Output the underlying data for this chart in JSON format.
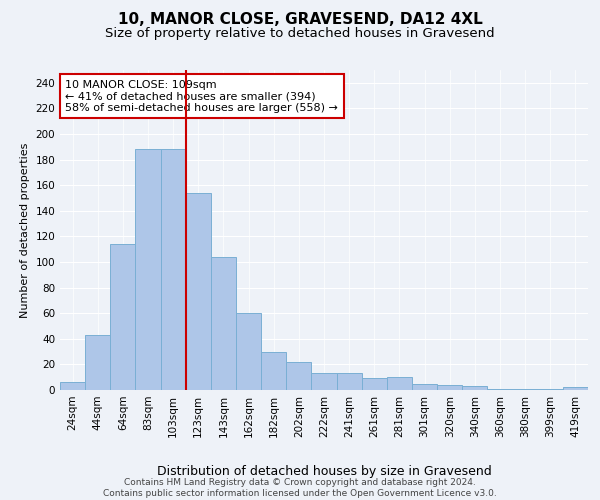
{
  "title": "10, MANOR CLOSE, GRAVESEND, DA12 4XL",
  "subtitle": "Size of property relative to detached houses in Gravesend",
  "xlabel": "Distribution of detached houses by size in Gravesend",
  "ylabel": "Number of detached properties",
  "categories": [
    "24sqm",
    "44sqm",
    "64sqm",
    "83sqm",
    "103sqm",
    "123sqm",
    "143sqm",
    "162sqm",
    "182sqm",
    "202sqm",
    "222sqm",
    "241sqm",
    "261sqm",
    "281sqm",
    "301sqm",
    "320sqm",
    "340sqm",
    "360sqm",
    "380sqm",
    "399sqm",
    "419sqm"
  ],
  "values": [
    6,
    43,
    114,
    188,
    188,
    154,
    104,
    60,
    30,
    22,
    13,
    13,
    9,
    10,
    5,
    4,
    3,
    1,
    1,
    1,
    2
  ],
  "bar_color": "#aec6e8",
  "bar_edge_color": "#7aafd4",
  "bar_linewidth": 0.7,
  "ylim": [
    0,
    250
  ],
  "yticks": [
    0,
    20,
    40,
    60,
    80,
    100,
    120,
    140,
    160,
    180,
    200,
    220,
    240
  ],
  "annotation_title": "10 MANOR CLOSE: 109sqm",
  "annotation_line1": "← 41% of detached houses are smaller (394)",
  "annotation_line2": "58% of semi-detached houses are larger (558) →",
  "annotation_box_color": "#ffffff",
  "annotation_box_edgecolor": "#cc0000",
  "footer_line1": "Contains HM Land Registry data © Crown copyright and database right 2024.",
  "footer_line2": "Contains public sector information licensed under the Open Government Licence v3.0.",
  "bg_color": "#eef2f8",
  "plot_bg_color": "#eef2f8",
  "title_fontsize": 11,
  "subtitle_fontsize": 9.5,
  "xlabel_fontsize": 9,
  "ylabel_fontsize": 8,
  "tick_fontsize": 7.5,
  "footer_fontsize": 6.5,
  "annotation_fontsize": 8
}
